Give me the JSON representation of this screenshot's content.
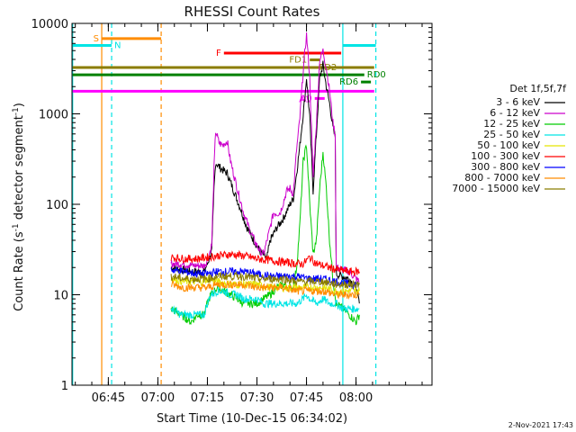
{
  "chart_data": {
    "type": "line",
    "title": "RHESSI Count Rates",
    "xlabel": "Start Time (10-Dec-15 06:34:02)",
    "ylabel_main": "Count Rate (s",
    "ylabel_sup1": "-1",
    "ylabel_mid": " detector segment",
    "ylabel_sup2": "-1",
    "ylabel_end": ")",
    "x_range_min": [
      0,
      109
    ],
    "y_range": [
      1,
      10000
    ],
    "y_scale": "log",
    "x_ticks": [
      {
        "t": 11,
        "label": "06:45"
      },
      {
        "t": 26,
        "label": "07:00"
      },
      {
        "t": 41,
        "label": "07:15"
      },
      {
        "t": 56,
        "label": "07:30"
      },
      {
        "t": 71,
        "label": "07:45"
      },
      {
        "t": 86,
        "label": "08:00"
      }
    ],
    "y_ticks": [
      {
        "v": 1,
        "label": "1"
      },
      {
        "v": 10,
        "label": "10"
      },
      {
        "v": 100,
        "label": "100"
      },
      {
        "v": 1000,
        "label": "1000"
      },
      {
        "v": 10000,
        "label": "10000"
      }
    ],
    "legend_title": "Det 1f,5f,7f",
    "legend_position": "right",
    "series": [
      {
        "name": "3 - 6 keV",
        "color": "#000000",
        "points": [
          [
            30,
            20
          ],
          [
            33,
            19
          ],
          [
            37,
            18
          ],
          [
            40,
            18
          ],
          [
            41,
            22
          ],
          [
            42.3,
            30
          ],
          [
            43,
            150
          ],
          [
            43.5,
            290
          ],
          [
            45,
            250
          ],
          [
            47,
            220
          ],
          [
            49,
            140
          ],
          [
            51,
            90
          ],
          [
            53,
            55
          ],
          [
            55,
            40
          ],
          [
            57,
            30
          ],
          [
            59,
            25
          ],
          [
            60,
            40
          ],
          [
            62,
            55
          ],
          [
            64,
            70
          ],
          [
            66,
            100
          ],
          [
            67,
            115
          ],
          [
            68,
            220
          ],
          [
            69,
            450
          ],
          [
            70.5,
            1500
          ],
          [
            71,
            2500
          ],
          [
            72,
            900
          ],
          [
            73,
            140
          ],
          [
            74,
            600
          ],
          [
            75,
            2500
          ],
          [
            76,
            3500
          ],
          [
            77,
            2000
          ],
          [
            78,
            1300
          ],
          [
            79,
            700
          ],
          [
            79.7,
            550
          ],
          [
            80,
            17
          ],
          [
            84,
            15
          ],
          [
            86,
            12
          ],
          [
            87,
            8
          ]
        ]
      },
      {
        "name": "6 - 12 keV",
        "color": "#cc00cc",
        "points": [
          [
            30,
            22
          ],
          [
            33,
            22
          ],
          [
            37,
            21
          ],
          [
            40,
            21
          ],
          [
            41,
            24
          ],
          [
            42.3,
            35
          ],
          [
            43,
            250
          ],
          [
            43.5,
            650
          ],
          [
            44.5,
            480
          ],
          [
            45.5,
            450
          ],
          [
            47,
            500
          ],
          [
            48,
            300
          ],
          [
            50,
            150
          ],
          [
            52,
            80
          ],
          [
            54,
            50
          ],
          [
            56,
            35
          ],
          [
            57,
            30
          ],
          [
            58,
            28
          ],
          [
            60,
            55
          ],
          [
            61,
            80
          ],
          [
            63,
            80
          ],
          [
            65,
            140
          ],
          [
            66,
            150
          ],
          [
            67,
            130
          ],
          [
            68,
            400
          ],
          [
            69,
            900
          ],
          [
            70,
            3000
          ],
          [
            71,
            7500
          ],
          [
            72,
            2500
          ],
          [
            73,
            200
          ],
          [
            74,
            800
          ],
          [
            75,
            4000
          ],
          [
            76,
            5000
          ],
          [
            77,
            3200
          ],
          [
            78,
            1800
          ],
          [
            79,
            800
          ],
          [
            79.7,
            600
          ],
          [
            80,
            20
          ],
          [
            84,
            18
          ],
          [
            86,
            15
          ],
          [
            87,
            14
          ]
        ]
      },
      {
        "name": "12 - 25 keV",
        "color": "#00cc00",
        "points": [
          [
            30,
            7
          ],
          [
            33,
            6
          ],
          [
            36,
            5
          ],
          [
            38,
            6
          ],
          [
            40,
            6
          ],
          [
            41,
            8
          ],
          [
            42,
            10
          ],
          [
            44,
            12
          ],
          [
            46,
            11
          ],
          [
            48,
            10
          ],
          [
            50,
            9
          ],
          [
            52,
            8
          ],
          [
            54,
            8
          ],
          [
            56,
            8
          ],
          [
            58,
            9
          ],
          [
            60,
            10
          ],
          [
            62,
            12
          ],
          [
            64,
            13
          ],
          [
            66,
            12
          ],
          [
            67,
            12
          ],
          [
            68,
            20
          ],
          [
            69,
            60
          ],
          [
            70,
            300
          ],
          [
            71,
            450
          ],
          [
            72,
            100
          ],
          [
            73,
            28
          ],
          [
            74,
            40
          ],
          [
            75,
            150
          ],
          [
            76,
            380
          ],
          [
            77,
            150
          ],
          [
            78,
            40
          ],
          [
            79,
            15
          ],
          [
            80,
            8
          ],
          [
            82,
            7
          ],
          [
            84,
            6
          ],
          [
            86,
            5
          ],
          [
            87,
            6
          ]
        ]
      },
      {
        "name": "25 - 50 keV",
        "color": "#00e5e5",
        "points": [
          [
            30,
            7
          ],
          [
            33,
            6
          ],
          [
            36,
            6
          ],
          [
            38,
            6
          ],
          [
            40,
            6
          ],
          [
            41,
            8
          ],
          [
            42,
            10
          ],
          [
            44,
            11
          ],
          [
            46,
            11
          ],
          [
            48,
            10
          ],
          [
            50,
            10
          ],
          [
            52,
            9
          ],
          [
            54,
            9
          ],
          [
            56,
            9
          ],
          [
            58,
            8
          ],
          [
            60,
            8
          ],
          [
            62,
            8
          ],
          [
            64,
            8
          ],
          [
            66,
            8
          ],
          [
            68,
            8
          ],
          [
            70,
            9
          ],
          [
            71,
            10
          ],
          [
            72,
            9
          ],
          [
            74,
            8
          ],
          [
            76,
            9
          ],
          [
            78,
            8
          ],
          [
            80,
            8
          ],
          [
            82,
            7
          ],
          [
            84,
            7
          ],
          [
            86,
            7
          ],
          [
            87,
            7
          ]
        ]
      },
      {
        "name": "50 - 100 keV",
        "color": "#e5e500",
        "points": [
          [
            30,
            15
          ],
          [
            34,
            14
          ],
          [
            38,
            14
          ],
          [
            40,
            14
          ],
          [
            41,
            15
          ],
          [
            44,
            14
          ],
          [
            48,
            13
          ],
          [
            52,
            13
          ],
          [
            56,
            13
          ],
          [
            60,
            12
          ],
          [
            64,
            12
          ],
          [
            68,
            12
          ],
          [
            72,
            12
          ],
          [
            76,
            12
          ],
          [
            80,
            11
          ],
          [
            84,
            11
          ],
          [
            87,
            11
          ]
        ]
      },
      {
        "name": "100 - 300 keV",
        "color": "#ff0000",
        "points": [
          [
            30,
            26
          ],
          [
            34,
            25
          ],
          [
            38,
            25
          ],
          [
            41,
            26
          ],
          [
            44,
            27
          ],
          [
            48,
            28
          ],
          [
            52,
            27
          ],
          [
            56,
            25
          ],
          [
            60,
            24
          ],
          [
            64,
            23
          ],
          [
            68,
            22
          ],
          [
            70,
            22
          ],
          [
            72,
            26
          ],
          [
            74,
            22
          ],
          [
            76,
            21
          ],
          [
            78,
            20
          ],
          [
            80,
            19
          ],
          [
            84,
            18
          ],
          [
            87,
            18
          ]
        ]
      },
      {
        "name": "300 - 800 keV",
        "color": "#0000ff",
        "points": [
          [
            30,
            19
          ],
          [
            34,
            18
          ],
          [
            38,
            17
          ],
          [
            41,
            17
          ],
          [
            44,
            18
          ],
          [
            48,
            18
          ],
          [
            52,
            18
          ],
          [
            56,
            17
          ],
          [
            60,
            16
          ],
          [
            64,
            16
          ],
          [
            68,
            16
          ],
          [
            72,
            15
          ],
          [
            76,
            15
          ],
          [
            80,
            14
          ],
          [
            84,
            13
          ],
          [
            87,
            13
          ]
        ]
      },
      {
        "name": "800 - 7000 keV",
        "color": "#ff8c00",
        "points": [
          [
            30,
            13
          ],
          [
            34,
            12
          ],
          [
            38,
            12
          ],
          [
            41,
            12
          ],
          [
            44,
            13
          ],
          [
            48,
            13
          ],
          [
            52,
            13
          ],
          [
            56,
            12
          ],
          [
            60,
            12
          ],
          [
            64,
            12
          ],
          [
            68,
            11
          ],
          [
            72,
            11
          ],
          [
            76,
            11
          ],
          [
            80,
            10
          ],
          [
            84,
            10
          ],
          [
            87,
            10
          ]
        ]
      },
      {
        "name": "7000 - 15000 keV",
        "color": "#8b7d00",
        "points": [
          [
            30,
            16
          ],
          [
            34,
            15
          ],
          [
            38,
            15
          ],
          [
            41,
            15
          ],
          [
            44,
            16
          ],
          [
            48,
            16
          ],
          [
            52,
            16
          ],
          [
            56,
            15
          ],
          [
            60,
            15
          ],
          [
            64,
            15
          ],
          [
            68,
            14
          ],
          [
            72,
            14
          ],
          [
            76,
            14
          ],
          [
            80,
            13
          ],
          [
            84,
            13
          ],
          [
            87,
            13
          ]
        ]
      }
    ],
    "vlines": [
      {
        "t": 0.2,
        "color": "#00e5e5",
        "dash": false
      },
      {
        "t": 9,
        "color": "#ff8c00",
        "dash": false
      },
      {
        "t": 12,
        "color": "#00e5e5",
        "dash": true
      },
      {
        "t": 27,
        "color": "#ff8c00",
        "dash": true
      },
      {
        "t": 82,
        "color": "#00e5e5",
        "dash": false
      },
      {
        "t": 92,
        "color": "#00e5e5",
        "dash": true
      }
    ],
    "flags": [
      {
        "label": "S",
        "color": "#ff8c00",
        "t1": 9,
        "t2": 27,
        "y": 6800,
        "label_side": "left"
      },
      {
        "label": "N",
        "color": "#00e5e5",
        "t1": 0.2,
        "t2": 12,
        "y": 5700,
        "label_side": "right"
      },
      {
        "label": "N",
        "color": "#00e5e5",
        "t1": 82,
        "t2": 92,
        "y": 5700,
        "label_side": "none"
      },
      {
        "label": "F",
        "color": "#ff0000",
        "t1": 46,
        "t2": 81.5,
        "y": 4700,
        "label_side": "left"
      },
      {
        "label": "FD1",
        "color": "#8b7d00",
        "t1": 72,
        "t2": 75,
        "y": 3950,
        "label_side": "left"
      },
      {
        "label": "FD2",
        "color": "#8b7d00",
        "t1": 0.2,
        "t2": 91.5,
        "y": 3250,
        "label_side": "inside_right"
      },
      {
        "label": "RD0",
        "color": "#008000",
        "t1": 0.2,
        "t2": 88.5,
        "y": 2700,
        "label_side": "right"
      },
      {
        "label": "RD6",
        "color": "#008000",
        "t1": 87.5,
        "t2": 90.5,
        "y": 2250,
        "label_side": "left"
      },
      {
        "label": "A1",
        "color": "#ff00ff",
        "t1": 0.2,
        "t2": 91.5,
        "y": 1780,
        "label_side": "inside_mid"
      },
      {
        "label": "A0",
        "color": "#ff00ff",
        "t1": 73.5,
        "t2": 76.5,
        "y": 1480,
        "label_side": "left"
      }
    ]
  },
  "footer": "2-Nov-2021 17:43"
}
